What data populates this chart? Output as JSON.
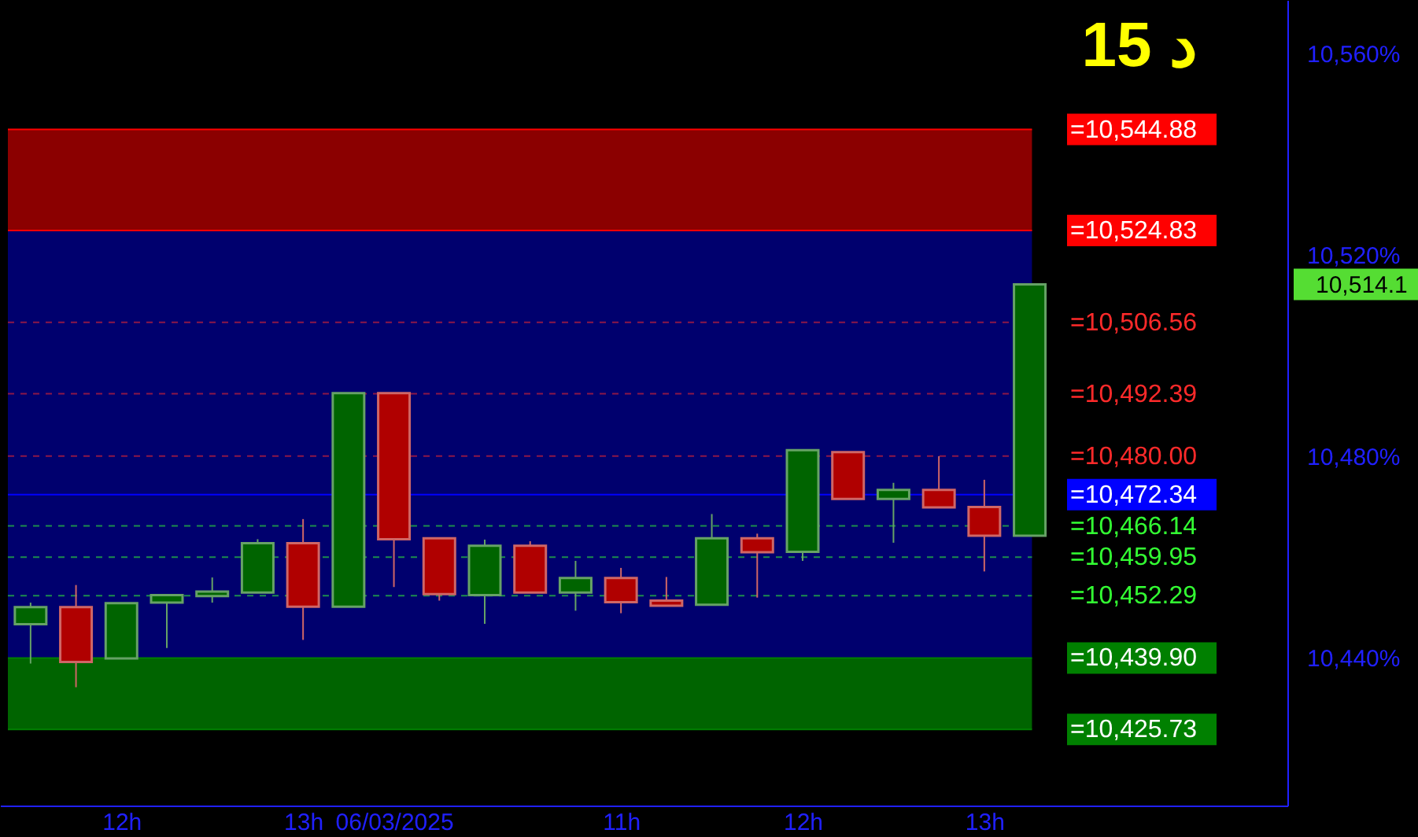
{
  "chart_data": {
    "type": "candlestick",
    "categories": [
      null,
      null,
      "12h",
      null,
      null,
      null,
      "13h",
      null,
      "06/03/2025",
      null,
      null,
      null,
      null,
      "11h",
      null,
      null,
      null,
      "12h",
      null,
      null,
      null,
      "13h",
      null,
      null,
      null,
      null,
      null,
      null
    ],
    "ohlc": [
      [
        10446.6,
        10450.9,
        10438.8,
        10450.0
      ],
      [
        10450.0,
        10454.4,
        10434.1,
        10439.1
      ],
      [
        10439.8,
        10450.8,
        10439.8,
        10450.8
      ],
      [
        10450.9,
        10452.4,
        10441.9,
        10452.4
      ],
      [
        10452.2,
        10455.9,
        10450.9,
        10453.1
      ],
      [
        10452.9,
        10463.5,
        10452.9,
        10462.7
      ],
      [
        10462.7,
        10467.5,
        10443.5,
        10450.1
      ],
      [
        10450.1,
        10492.5,
        10450.1,
        10492.5
      ],
      [
        10492.5,
        10492.5,
        10454.0,
        10463.5
      ],
      [
        10463.7,
        10463.7,
        10451.3,
        10452.6
      ],
      [
        10452.4,
        10463.4,
        10446.7,
        10462.2
      ],
      [
        10462.2,
        10463.1,
        10452.9,
        10452.9
      ],
      [
        10452.9,
        10459.2,
        10449.3,
        10455.8
      ],
      [
        10455.8,
        10457.8,
        10448.8,
        10451.0
      ],
      [
        10451.3,
        10456.0,
        10450.3,
        10450.3
      ],
      [
        10450.5,
        10468.5,
        10450.5,
        10463.7
      ],
      [
        10463.7,
        10464.6,
        10451.9,
        10460.9
      ],
      [
        10461.0,
        10481.2,
        10459.2,
        10481.2
      ],
      [
        10480.8,
        10480.8,
        10471.5,
        10471.5
      ],
      [
        10471.5,
        10474.7,
        10462.8,
        10473.3
      ],
      [
        10473.3,
        10480.0,
        10469.8,
        10469.8
      ],
      [
        10469.9,
        10475.3,
        10457.1,
        10464.2
      ],
      [
        10464.2,
        10514.1,
        10464.2,
        10514.1
      ],
      null,
      null,
      null,
      null,
      null
    ],
    "colors": [
      "#006400",
      "#b00000",
      "#006400",
      "#006400",
      "#006400",
      "#006400",
      "#b00000",
      "#006400",
      "#b00000",
      "#b00000",
      "#006400",
      "#b00000",
      "#006400",
      "#b00000",
      "#b00000",
      "#006400",
      "#b00000",
      "#006400",
      "#b00000",
      "#006400",
      "#b00000",
      "#b00000",
      "#006400",
      null,
      null,
      null,
      null,
      null
    ],
    "ylim": [
      10410.6,
      10570.6
    ],
    "yticks": [
      {
        "value": 10440,
        "label": "10,440%"
      },
      {
        "value": 10480,
        "label": "10,480%"
      },
      {
        "value": 10520,
        "label": "10,520%"
      },
      {
        "value": 10560,
        "label": "10,560%"
      }
    ],
    "bands": [
      {
        "axis": "y",
        "from": 10524.83,
        "to": 10544.88,
        "color": "#8b0000"
      },
      {
        "axis": "y",
        "from": 10439.9,
        "to": 10524.83,
        "color": "#00006e"
      },
      {
        "axis": "y",
        "from": 10425.73,
        "to": 10439.9,
        "color": "#006400"
      }
    ],
    "ref_lines": [
      {
        "axis": "y",
        "value": 10544.88,
        "label": "=10,544.88",
        "color": "#ff0000",
        "line_style": "solid"
      },
      {
        "axis": "y",
        "value": 10524.83,
        "label": "=10,524.83",
        "color": "#ff0000",
        "line_style": "solid"
      },
      {
        "axis": "y",
        "value": 10506.56,
        "label": "=10,506.56",
        "color": "#ff2a2a",
        "line_style": "dashed"
      },
      {
        "axis": "y",
        "value": 10492.39,
        "label": "=10,492.39",
        "color": "#ff2a2a",
        "line_style": "dashed"
      },
      {
        "axis": "y",
        "value": 10480.0,
        "label": "=10,480.00",
        "color": "#ff2a2a",
        "line_style": "dashed"
      },
      {
        "axis": "y",
        "value": 10472.34,
        "label": "=10,472.34",
        "color": "#0000ff",
        "line_style": "solid"
      },
      {
        "axis": "y",
        "value": 10466.14,
        "label": "=10,466.14",
        "color": "#33ff33",
        "line_style": "dashed"
      },
      {
        "axis": "y",
        "value": 10459.95,
        "label": "=10,459.95",
        "color": "#33ff33",
        "line_style": "dashed"
      },
      {
        "axis": "y",
        "value": 10452.29,
        "label": "=10,452.29",
        "color": "#33ff33",
        "line_style": "dashed"
      },
      {
        "axis": "y",
        "value": 10439.9,
        "label": "=10,439.90",
        "color": "#008000",
        "line_style": "solid"
      },
      {
        "axis": "y",
        "value": 10425.73,
        "label": "=10,425.73",
        "color": "#008000",
        "line_style": "solid"
      }
    ],
    "annotations": [
      "15 د",
      "10,514.1"
    ]
  }
}
